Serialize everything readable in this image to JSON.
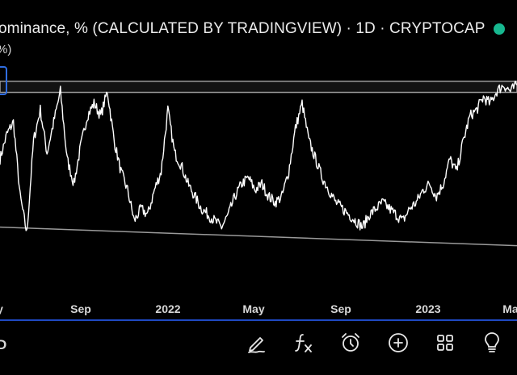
{
  "header": {
    "title": "ominance, % (CALCULATED BY TRADINGVIEW) · 1D · CRYPTOCAP",
    "subtitle": "%)"
  },
  "colors": {
    "background": "#000000",
    "line": "#ffffff",
    "channel": "#9a9a9a",
    "status_dot": "#17b890",
    "toolbar_divider": "#1f49c2",
    "marker": "#2f6de1"
  },
  "chart_data": {
    "type": "line",
    "x_ticks": [
      "y",
      "Sep",
      "2022",
      "May",
      "Sep",
      "2023",
      "Ma"
    ],
    "series": [
      {
        "values": [
          52,
          56,
          58,
          46,
          40,
          55,
          60,
          53,
          58,
          63,
          52,
          48,
          54,
          59,
          61,
          59,
          63,
          55,
          50,
          47,
          42,
          44,
          43,
          47,
          50,
          60,
          53,
          51,
          48,
          46,
          44,
          43,
          42,
          41,
          43,
          46,
          48,
          49,
          47,
          48,
          46,
          45,
          46,
          50,
          57,
          61,
          55,
          52,
          49,
          47,
          45,
          44,
          43,
          42,
          41,
          43,
          44,
          45,
          44,
          43,
          42,
          44,
          45,
          47,
          48,
          46,
          48,
          52,
          50,
          55,
          59,
          60,
          62,
          61,
          63,
          64,
          63,
          64
        ]
      }
    ],
    "overlays": {
      "resistance_zone": [
        62.8,
        64.6
      ],
      "support_trendline": [
        41,
        38
      ]
    },
    "grid": false,
    "legend": "none"
  },
  "toolbar": {
    "left_text": "D",
    "icons": [
      "pen-icon",
      "formula-icon",
      "alarm-icon",
      "plus-circle-icon",
      "grid-icon",
      "lightbulb-icon"
    ]
  }
}
